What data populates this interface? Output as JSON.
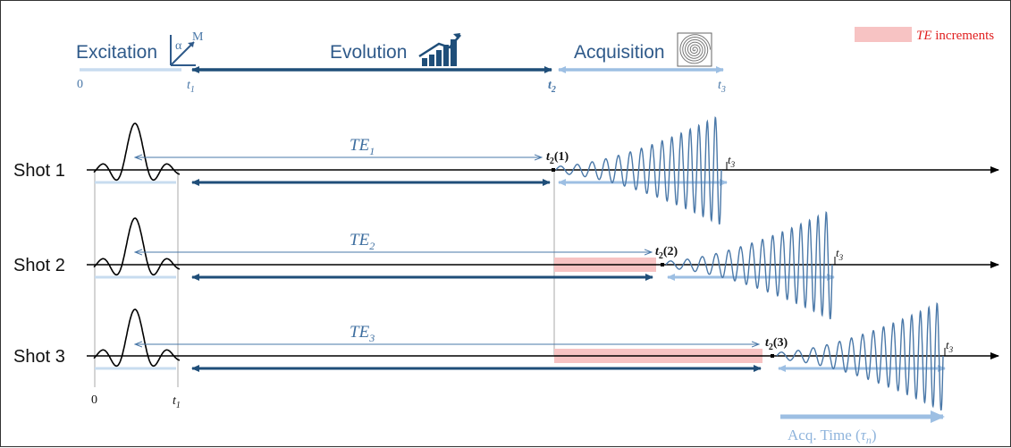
{
  "legend": {
    "swatch_color": "#f7c3c3",
    "text": "TE increments",
    "text_color": "#e02020"
  },
  "phases": {
    "excitation": "Excitation",
    "evolution": "Evolution",
    "acquisition": "Acquisition",
    "ticks": {
      "zero": "0",
      "t1": "t",
      "t1_sub": "1",
      "t2": "t",
      "t2_sub": "2",
      "t3": "t",
      "t3_sub": "3"
    },
    "excitation_icon_labels": {
      "alpha": "α",
      "m": "M"
    },
    "colors": {
      "excitation": "#c8dcef",
      "evolution": "#1f4e79",
      "acquisition": "#9dbfe3"
    }
  },
  "shots": [
    {
      "label": "Shot 1",
      "te": "TE",
      "te_sub": "1",
      "t2": "t",
      "t2_sub": "2",
      "t2_arg": "(1)",
      "t3": "t",
      "t3_sub": "3"
    },
    {
      "label": "Shot 2",
      "te": "TE",
      "te_sub": "2",
      "t2": "t",
      "t2_sub": "2",
      "t2_arg": "(2)",
      "t3": "t",
      "t3_sub": "3"
    },
    {
      "label": "Shot 3",
      "te": "TE",
      "te_sub": "3",
      "t2": "t",
      "t2_sub": "2",
      "t2_arg": "(3)",
      "t3": "t",
      "t3_sub": "3"
    }
  ],
  "bottom_axis": {
    "zero": "0",
    "t1": "t",
    "t1_sub": "1"
  },
  "acq_time": {
    "text": "Acq. Time (",
    "tau": "τ",
    "tau_sub": "n",
    "close": ")"
  }
}
